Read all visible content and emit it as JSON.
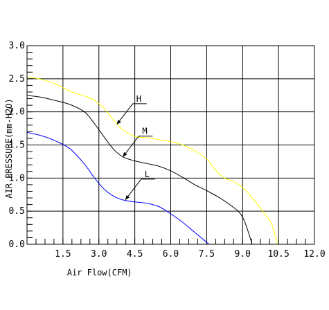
{
  "chart_data": {
    "type": "line",
    "title": "",
    "xlabel": "Air Flow(CFM)",
    "ylabel": "AIR PRESSURE(mm-H2O)",
    "xlim": [
      0,
      12
    ],
    "ylim": [
      0,
      3
    ],
    "x_ticks": [
      1.5,
      3.0,
      4.5,
      6.0,
      7.5,
      9.0,
      10.5,
      12.0
    ],
    "x_tick_labels": [
      "1.5",
      "3.0",
      "4.5",
      "6.0",
      "7.5",
      "9.0",
      "10.5",
      "12.0"
    ],
    "y_ticks": [
      0,
      0.5,
      1.0,
      1.5,
      2.0,
      2.5,
      3.0
    ],
    "y_tick_labels": [
      "0.0",
      "0.5",
      "1.0",
      "1.5",
      "2.0",
      "2.5",
      "3.0"
    ],
    "grid": true,
    "series": [
      {
        "name": "H",
        "color": "#ffff00",
        "x": [
          0,
          0.6,
          1.2,
          1.8,
          2.4,
          2.8,
          3.2,
          3.6,
          4.0,
          4.5,
          5.0,
          5.5,
          6.0,
          6.5,
          7.0,
          7.5,
          7.8,
          8.2,
          8.6,
          9.0,
          9.4,
          9.8,
          10.2,
          10.45
        ],
        "y": [
          2.53,
          2.49,
          2.42,
          2.31,
          2.24,
          2.18,
          2.06,
          1.88,
          1.73,
          1.63,
          1.61,
          1.58,
          1.55,
          1.5,
          1.41,
          1.29,
          1.15,
          1.01,
          0.95,
          0.86,
          0.7,
          0.52,
          0.31,
          0.0
        ]
      },
      {
        "name": "M",
        "color": "#000000",
        "x": [
          0,
          0.6,
          1.2,
          1.8,
          2.4,
          2.8,
          3.2,
          3.6,
          4.0,
          4.5,
          5.0,
          5.5,
          6.0,
          6.5,
          7.0,
          7.5,
          8.0,
          8.5,
          9.0,
          9.4
        ],
        "y": [
          2.25,
          2.22,
          2.17,
          2.11,
          2.0,
          1.83,
          1.63,
          1.44,
          1.32,
          1.26,
          1.22,
          1.18,
          1.11,
          1.01,
          0.9,
          0.81,
          0.71,
          0.59,
          0.41,
          0.0
        ]
      },
      {
        "name": "L",
        "color": "#0000ff",
        "x": [
          0,
          0.6,
          1.2,
          1.8,
          2.4,
          2.8,
          3.2,
          3.6,
          4.0,
          4.5,
          5.0,
          5.5,
          6.0,
          6.5,
          7.0,
          7.6
        ],
        "y": [
          1.69,
          1.64,
          1.56,
          1.44,
          1.21,
          1.01,
          0.84,
          0.73,
          0.67,
          0.64,
          0.62,
          0.57,
          0.46,
          0.33,
          0.18,
          0.0
        ]
      }
    ],
    "annotations": [
      {
        "text": "H",
        "series": "H",
        "x": 3.75,
        "y": 1.81
      },
      {
        "text": "M",
        "series": "M",
        "x": 4.0,
        "y": 1.32
      },
      {
        "text": "L",
        "series": "L",
        "x": 4.1,
        "y": 0.67
      }
    ]
  }
}
